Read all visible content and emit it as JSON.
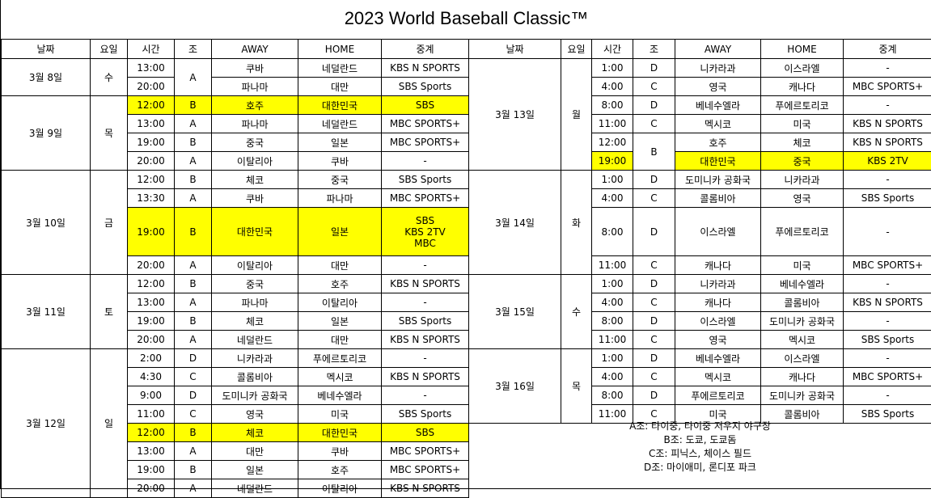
{
  "title": "2023 World Baseball Classic™",
  "colors": {
    "highlight": "#ffff00",
    "border": "#000000"
  },
  "headers": [
    "날짜",
    "요일",
    "시간",
    "조",
    "AWAY",
    "HOME",
    "중계"
  ],
  "left": {
    "groups": [
      {
        "date": "3월 8일",
        "day": "수",
        "rows": [
          {
            "time": "13:00",
            "group": "A",
            "away": "쿠바",
            "home": "네덜란드",
            "tv": "KBS N SPORTS",
            "hl": false
          },
          {
            "time": "20:00",
            "group": "",
            "away": "파나마",
            "home": "대만",
            "tv": "SBS Sports",
            "hl": false
          }
        ]
      },
      {
        "date": "3월 9일",
        "day": "목",
        "rows": [
          {
            "time": "12:00",
            "group": "B",
            "away": "호주",
            "home": "대한민국",
            "tv": "SBS",
            "hl": true
          },
          {
            "time": "13:00",
            "group": "A",
            "away": "파나마",
            "home": "네덜란드",
            "tv": "MBC SPORTS+",
            "hl": false
          },
          {
            "time": "19:00",
            "group": "B",
            "away": "중국",
            "home": "일본",
            "tv": "MBC SPORTS+",
            "hl": false
          },
          {
            "time": "20:00",
            "group": "A",
            "away": "이탈리아",
            "home": "쿠바",
            "tv": "-",
            "hl": false
          }
        ]
      },
      {
        "date": "3월 10일",
        "day": "금",
        "rows": [
          {
            "time": "12:00",
            "group": "B",
            "away": "체코",
            "home": "중국",
            "tv": "SBS Sports",
            "hl": false
          },
          {
            "time": "13:30",
            "group": "A",
            "away": "쿠바",
            "home": "파나마",
            "tv": "MBC SPORTS+",
            "hl": false
          },
          {
            "time": "19:00",
            "group": "B",
            "away": "대한민국",
            "home": "일본",
            "tv": "SBS\nKBS 2TV\nMBC",
            "hl": true,
            "tall": true
          },
          {
            "time": "20:00",
            "group": "A",
            "away": "이탈리아",
            "home": "대만",
            "tv": "-",
            "hl": false
          }
        ]
      },
      {
        "date": "3월 11일",
        "day": "토",
        "rows": [
          {
            "time": "12:00",
            "group": "B",
            "away": "중국",
            "home": "호주",
            "tv": "KBS N SPORTS",
            "hl": false
          },
          {
            "time": "13:00",
            "group": "A",
            "away": "파나마",
            "home": "이탈리아",
            "tv": "-",
            "hl": false
          },
          {
            "time": "19:00",
            "group": "B",
            "away": "체코",
            "home": "일본",
            "tv": "SBS Sports",
            "hl": false
          },
          {
            "time": "20:00",
            "group": "A",
            "away": "네덜란드",
            "home": "대만",
            "tv": "KBS N SPORTS",
            "hl": false
          }
        ]
      },
      {
        "date": "3월 12일",
        "day": "일",
        "rows": [
          {
            "time": "2:00",
            "group": "D",
            "away": "니카라과",
            "home": "푸에르토리코",
            "tv": "-",
            "hl": false
          },
          {
            "time": "4:30",
            "group": "C",
            "away": "콜롬비아",
            "home": "멕시코",
            "tv": "KBS N SPORTS",
            "hl": false
          },
          {
            "time": "9:00",
            "group": "D",
            "away": "도미니카 공화국",
            "home": "베네수엘라",
            "tv": "-",
            "hl": false
          },
          {
            "time": "11:00",
            "group": "C",
            "away": "영국",
            "home": "미국",
            "tv": "SBS Sports",
            "hl": false
          },
          {
            "time": "12:00",
            "group": "B",
            "away": "체코",
            "home": "대한민국",
            "tv": "SBS",
            "hl": true
          },
          {
            "time": "13:00",
            "group": "A",
            "away": "대만",
            "home": "쿠바",
            "tv": "MBC SPORTS+",
            "hl": false
          },
          {
            "time": "19:00",
            "group": "B",
            "away": "일본",
            "home": "호주",
            "tv": "MBC SPORTS+",
            "hl": false
          },
          {
            "time": "20:00",
            "group": "A",
            "away": "네덜란드",
            "home": "이탈리아",
            "tv": "KBS N SPORTS",
            "hl": false
          }
        ]
      }
    ]
  },
  "right": {
    "groups": [
      {
        "date": "3월 13일",
        "day": "월",
        "rows": [
          {
            "time": "1:00",
            "group": "D",
            "away": "니카라과",
            "home": "이스라엘",
            "tv": "-",
            "hl": false
          },
          {
            "time": "4:00",
            "group": "C",
            "away": "영국",
            "home": "캐나다",
            "tv": "MBC SPORTS+",
            "hl": false
          },
          {
            "time": "8:00",
            "group": "D",
            "away": "베네수엘라",
            "home": "푸에르토리코",
            "tv": "-",
            "hl": false
          },
          {
            "time": "11:00",
            "group": "C",
            "away": "멕시코",
            "home": "미국",
            "tv": "KBS N SPORTS",
            "hl": false
          },
          {
            "time": "12:00",
            "group": "B",
            "away": "호주",
            "home": "체코",
            "tv": "KBS N SPORTS",
            "hl": false
          },
          {
            "time": "19:00",
            "group": "",
            "away": "대한민국",
            "home": "중국",
            "tv": "KBS 2TV",
            "hl": true
          }
        ]
      },
      {
        "date": "3월 14일",
        "day": "화",
        "rows": [
          {
            "time": "1:00",
            "group": "D",
            "away": "도미니카 공화국",
            "home": "니카라과",
            "tv": "-",
            "hl": false
          },
          {
            "time": "4:00",
            "group": "C",
            "away": "콜롬비아",
            "home": "영국",
            "tv": "SBS Sports",
            "hl": false
          },
          {
            "time": "8:00",
            "group": "D",
            "away": "이스라엘",
            "home": "푸에르토리코",
            "tv": "-",
            "hl": false,
            "tall": true
          },
          {
            "time": "11:00",
            "group": "C",
            "away": "캐나다",
            "home": "미국",
            "tv": "MBC SPORTS+",
            "hl": false
          }
        ]
      },
      {
        "date": "3월 15일",
        "day": "수",
        "rows": [
          {
            "time": "1:00",
            "group": "D",
            "away": "니카라과",
            "home": "베네수엘라",
            "tv": "-",
            "hl": false
          },
          {
            "time": "4:00",
            "group": "C",
            "away": "캐나다",
            "home": "콜롬비아",
            "tv": "KBS N SPORTS",
            "hl": false
          },
          {
            "time": "8:00",
            "group": "D",
            "away": "이스라엘",
            "home": "도미니카 공화국",
            "tv": "-",
            "hl": false
          },
          {
            "time": "11:00",
            "group": "C",
            "away": "영국",
            "home": "멕시코",
            "tv": "SBS Sports",
            "hl": false
          }
        ]
      },
      {
        "date": "3월 16일",
        "day": "목",
        "rows": [
          {
            "time": "1:00",
            "group": "D",
            "away": "베네수엘라",
            "home": "이스라엘",
            "tv": "-",
            "hl": false
          },
          {
            "time": "4:00",
            "group": "C",
            "away": "멕시코",
            "home": "캐나다",
            "tv": "MBC SPORTS+",
            "hl": false
          },
          {
            "time": "8:00",
            "group": "D",
            "away": "푸에르토리코",
            "home": "도미니카 공화국",
            "tv": "-",
            "hl": false
          },
          {
            "time": "11:00",
            "group": "C",
            "away": "미국",
            "home": "콜롬비아",
            "tv": "SBS Sports",
            "hl": false
          }
        ]
      }
    ]
  },
  "notes": [
    "A조: 타이중, 타이중 저우지 야구장",
    "B조: 도쿄, 도쿄돔",
    "C조: 피닉스, 체이스 필드",
    "D조: 마이애미, 론디포 파크"
  ]
}
